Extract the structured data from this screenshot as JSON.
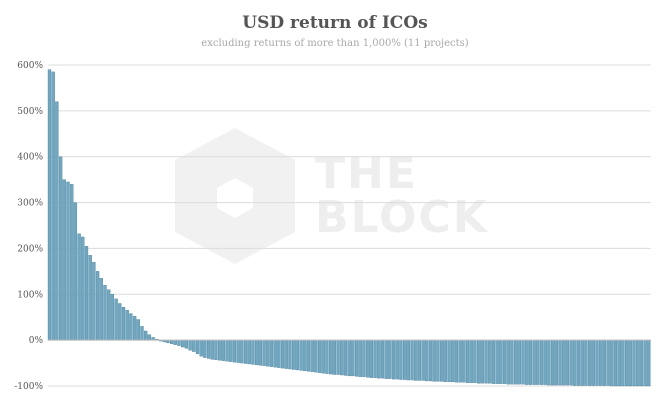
{
  "chart_data": {
    "type": "bar",
    "title": "USD return of ICOs",
    "subtitle": "excluding returns of more than 1,000% (11 projects)",
    "ylim": [
      -100,
      600
    ],
    "yticks": [
      -100,
      0,
      100,
      200,
      300,
      400,
      500,
      600
    ],
    "ytick_labels": [
      "-100%",
      "0%",
      "100%",
      "200%",
      "300%",
      "400%",
      "500%",
      "600%"
    ],
    "grid": true,
    "bar_color": "#6fa8c3",
    "bar_edge_color": "#3f6f86",
    "watermark": {
      "line1": "THE",
      "line2": "BLOCK",
      "color": "#eeeeee"
    },
    "values": [
      590,
      585,
      520,
      400,
      350,
      345,
      340,
      300,
      232,
      225,
      205,
      185,
      170,
      150,
      135,
      120,
      110,
      100,
      90,
      80,
      72,
      65,
      58,
      52,
      45,
      30,
      20,
      12,
      6,
      2,
      -2,
      -4,
      -6,
      -8,
      -10,
      -12,
      -15,
      -18,
      -22,
      -25,
      -30,
      -35,
      -38,
      -40,
      -42,
      -43,
      -44,
      -45,
      -46,
      -47,
      -48,
      -49,
      -50,
      -51,
      -52,
      -53,
      -54,
      -55,
      -56,
      -57,
      -58,
      -59,
      -60,
      -61,
      -62,
      -63,
      -64,
      -65,
      -66,
      -67,
      -68,
      -69,
      -70,
      -71,
      -72,
      -73,
      -74,
      -75,
      -75,
      -76,
      -77,
      -78,
      -78,
      -79,
      -80,
      -80,
      -81,
      -82,
      -82,
      -83,
      -83,
      -84,
      -84,
      -85,
      -85,
      -86,
      -86,
      -87,
      -87,
      -88,
      -88,
      -88,
      -89,
      -89,
      -90,
      -90,
      -90,
      -91,
      -91,
      -91,
      -92,
      -92,
      -92,
      -93,
      -93,
      -93,
      -94,
      -94,
      -94,
      -94,
      -95,
      -95,
      -95,
      -95,
      -96,
      -96,
      -96,
      -96,
      -96,
      -97,
      -97,
      -97,
      -97,
      -97,
      -97,
      -98,
      -98,
      -98,
      -98,
      -98,
      -98,
      -98,
      -99,
      -99,
      -99,
      -99,
      -99,
      -99,
      -99,
      -99,
      -99,
      -99,
      -100,
      -100,
      -100,
      -100,
      -100,
      -100,
      -100,
      -100,
      -100,
      -100,
      -100
    ]
  }
}
